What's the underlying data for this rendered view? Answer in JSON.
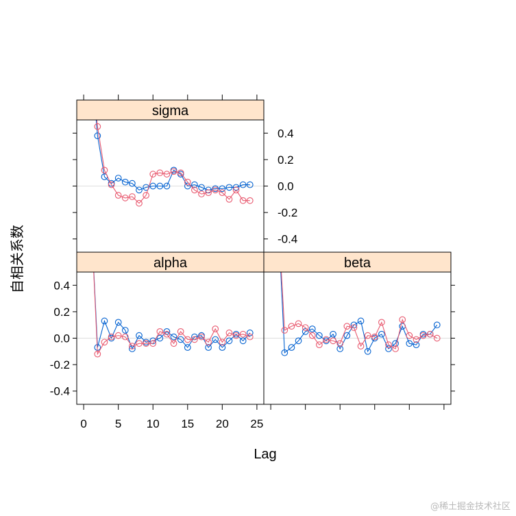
{
  "chart_data": {
    "type": "line",
    "xlabel": "Lag",
    "ylabel": "自相关系数",
    "xlim": [
      -1,
      26
    ],
    "ylim": [
      -0.5,
      0.5
    ],
    "x_ticks": [
      0,
      5,
      10,
      15,
      20,
      25
    ],
    "y_ticks": [
      -0.4,
      -0.2,
      0.0,
      0.2,
      0.4
    ],
    "grid": false,
    "reference_line_y": 0,
    "series_colors": [
      "#0060D0",
      "#E8586E"
    ],
    "panels": [
      {
        "name": "sigma",
        "series": [
          {
            "x": [
              1,
              2,
              3,
              4,
              5,
              6,
              7,
              8,
              9,
              10,
              11,
              12,
              13,
              14,
              15,
              16,
              17,
              18,
              19,
              20,
              21,
              22,
              23,
              24
            ],
            "values": [
              1.0,
              0.38,
              0.07,
              0.02,
              0.06,
              0.03,
              0.02,
              -0.03,
              -0.01,
              0.0,
              0.0,
              0.0,
              0.12,
              0.09,
              0.0,
              0.01,
              -0.01,
              -0.03,
              -0.02,
              -0.02,
              -0.01,
              -0.01,
              0.01,
              0.01
            ]
          },
          {
            "x": [
              1,
              2,
              3,
              4,
              5,
              6,
              7,
              8,
              9,
              10,
              11,
              12,
              13,
              14,
              15,
              16,
              17,
              18,
              19,
              20,
              21,
              22,
              23,
              24
            ],
            "values": [
              1.0,
              0.45,
              0.12,
              0.01,
              -0.07,
              -0.09,
              -0.08,
              -0.13,
              -0.07,
              0.09,
              0.1,
              0.09,
              0.11,
              0.1,
              0.03,
              -0.03,
              -0.06,
              -0.05,
              -0.03,
              -0.05,
              -0.1,
              -0.03,
              -0.11,
              -0.11
            ]
          }
        ]
      },
      {
        "name": "alpha",
        "series": [
          {
            "x": [
              1,
              2,
              3,
              4,
              5,
              6,
              7,
              8,
              9,
              10,
              11,
              12,
              13,
              14,
              15,
              16,
              17,
              18,
              19,
              20,
              21,
              22,
              23,
              24
            ],
            "values": [
              1.0,
              -0.07,
              0.13,
              0.0,
              0.12,
              0.06,
              -0.08,
              0.02,
              -0.03,
              -0.02,
              0.0,
              0.05,
              0.01,
              -0.01,
              -0.07,
              0.01,
              0.02,
              -0.07,
              -0.01,
              -0.07,
              -0.02,
              0.03,
              -0.02,
              0.04
            ]
          },
          {
            "x": [
              1,
              2,
              3,
              4,
              5,
              6,
              7,
              8,
              9,
              10,
              11,
              12,
              13,
              14,
              15,
              16,
              17,
              18,
              19,
              20,
              21,
              22,
              23,
              24
            ],
            "values": [
              1.0,
              -0.12,
              -0.03,
              0.01,
              0.02,
              0.01,
              -0.06,
              -0.04,
              -0.04,
              -0.04,
              0.05,
              0.03,
              -0.04,
              0.05,
              -0.01,
              -0.01,
              0.01,
              -0.03,
              0.07,
              -0.03,
              0.04,
              0.02,
              0.03,
              0.01
            ]
          }
        ]
      },
      {
        "name": "beta",
        "series": [
          {
            "x": [
              1,
              2,
              3,
              4,
              5,
              6,
              7,
              8,
              9,
              10,
              11,
              12,
              13,
              14,
              15,
              16,
              17,
              18,
              19,
              20,
              21,
              22,
              23,
              24
            ],
            "values": [
              1.0,
              -0.11,
              -0.07,
              -0.02,
              0.05,
              0.07,
              0.02,
              -0.02,
              0.03,
              -0.08,
              0.02,
              0.1,
              0.13,
              -0.1,
              0.0,
              0.03,
              -0.08,
              -0.04,
              0.09,
              -0.04,
              -0.05,
              0.03,
              0.03,
              0.1
            ]
          },
          {
            "x": [
              1,
              2,
              3,
              4,
              5,
              6,
              7,
              8,
              9,
              10,
              11,
              12,
              13,
              14,
              15,
              16,
              17,
              18,
              19,
              20,
              21,
              22,
              23,
              24
            ],
            "values": [
              1.0,
              0.06,
              0.09,
              0.11,
              0.08,
              0.02,
              -0.05,
              -0.01,
              -0.02,
              -0.04,
              0.09,
              0.08,
              -0.06,
              0.02,
              0.01,
              0.12,
              -0.05,
              -0.08,
              0.14,
              0.02,
              -0.01,
              0.02,
              0.03,
              0.0
            ]
          }
        ]
      }
    ]
  },
  "watermark": "@稀土掘金技术社区"
}
